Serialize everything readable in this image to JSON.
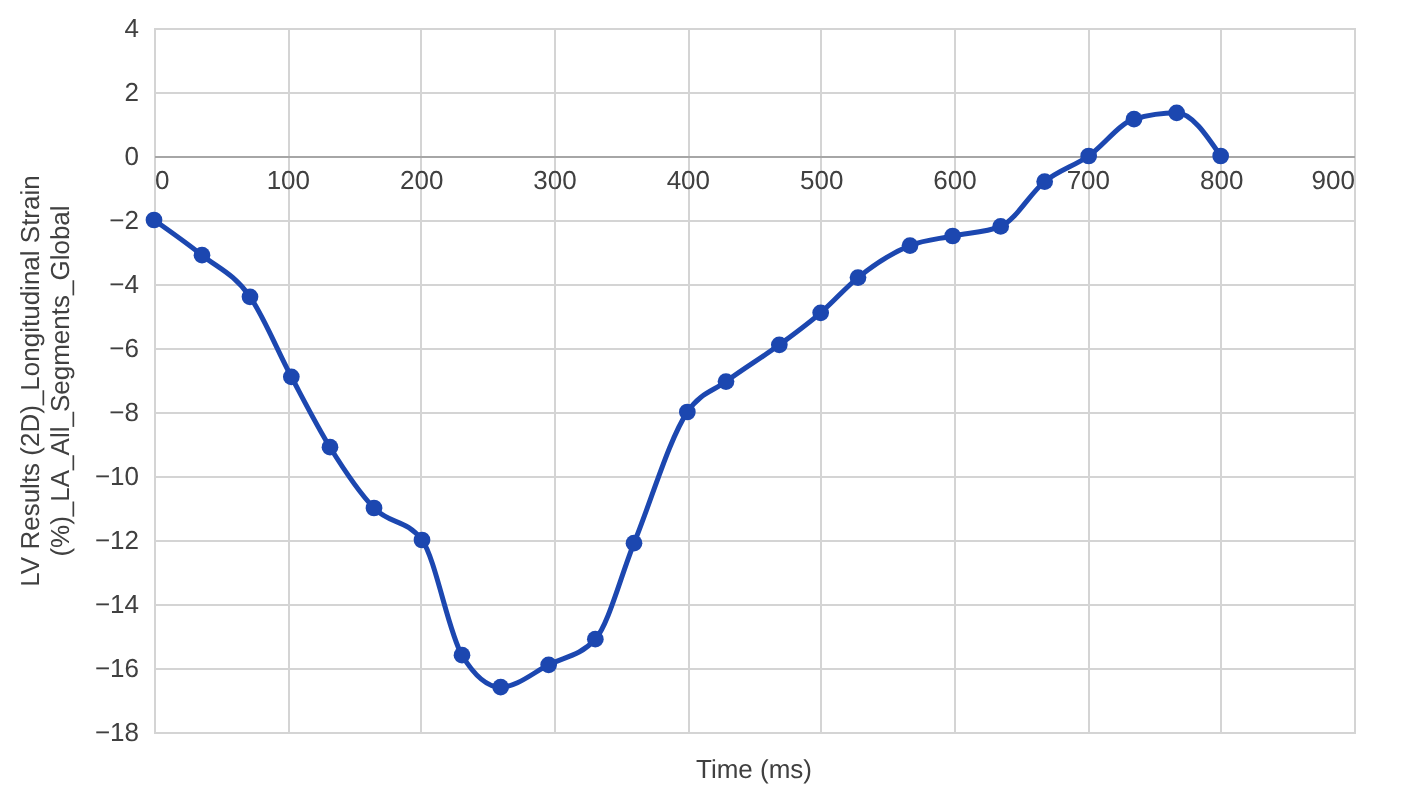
{
  "chart_data": {
    "type": "line",
    "xlabel": "Time (ms)",
    "ylabel": "LV Results (2D)_Longitudinal Strain\n(%)_LA_All_Segments_Global",
    "x": [
      0,
      36,
      72,
      103,
      132,
      165,
      201,
      231,
      260,
      296,
      331,
      360,
      400,
      429,
      469,
      500,
      528,
      567,
      599,
      635,
      668,
      701,
      735,
      767,
      800
    ],
    "series": [
      {
        "color": "#1c47b0",
        "values": [
          -2,
          -3.1,
          -4.4,
          -6.9,
          -9.1,
          -11,
          -12,
          -15.6,
          -16.6,
          -15.9,
          -15.1,
          -12.1,
          -8,
          -7.05,
          -5.9,
          -4.9,
          -3.8,
          -2.8,
          -2.5,
          -2.2,
          -0.8,
          0,
          1.15,
          1.35,
          0
        ]
      }
    ],
    "xlim": [
      0,
      900
    ],
    "xticks": [
      0,
      100,
      200,
      300,
      400,
      500,
      600,
      700,
      800,
      900
    ],
    "ylim": [
      -18,
      4
    ],
    "yticks": [
      -18,
      -16,
      -14,
      -12,
      -10,
      -8,
      -6,
      -4,
      -2,
      0,
      2,
      4
    ],
    "grid": true,
    "marker": "circle",
    "line_style": "solid"
  }
}
